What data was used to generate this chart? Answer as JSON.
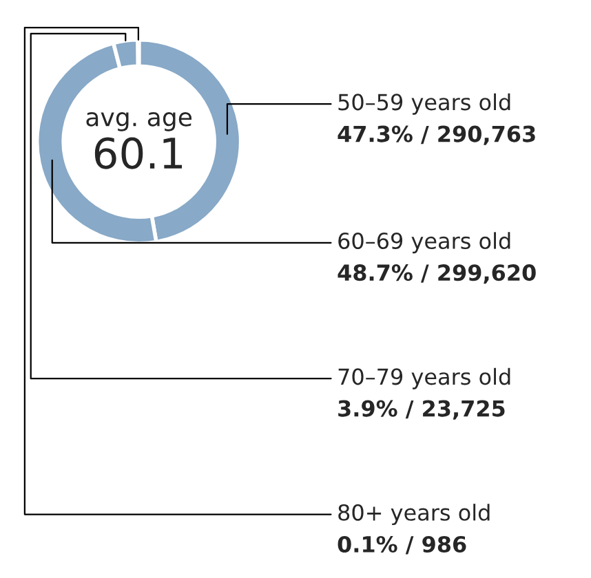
{
  "chart_data": {
    "type": "donut",
    "categories": [
      "50–59 years old",
      "60–69 years old",
      "70–79 years old",
      "80+ years old"
    ],
    "values": [
      290763,
      299620,
      23725,
      986
    ],
    "value_labels": [
      "47.3% / 290,763",
      "48.7% / 299,620",
      "3.9% / 23,725",
      "0.1% / 986"
    ],
    "colors": [
      "#88a9c7",
      "#88a9c7",
      "#88a9c7",
      "#88a9c7"
    ],
    "annotations": [
      "avg. age",
      "60.1"
    ],
    "legend": false
  }
}
